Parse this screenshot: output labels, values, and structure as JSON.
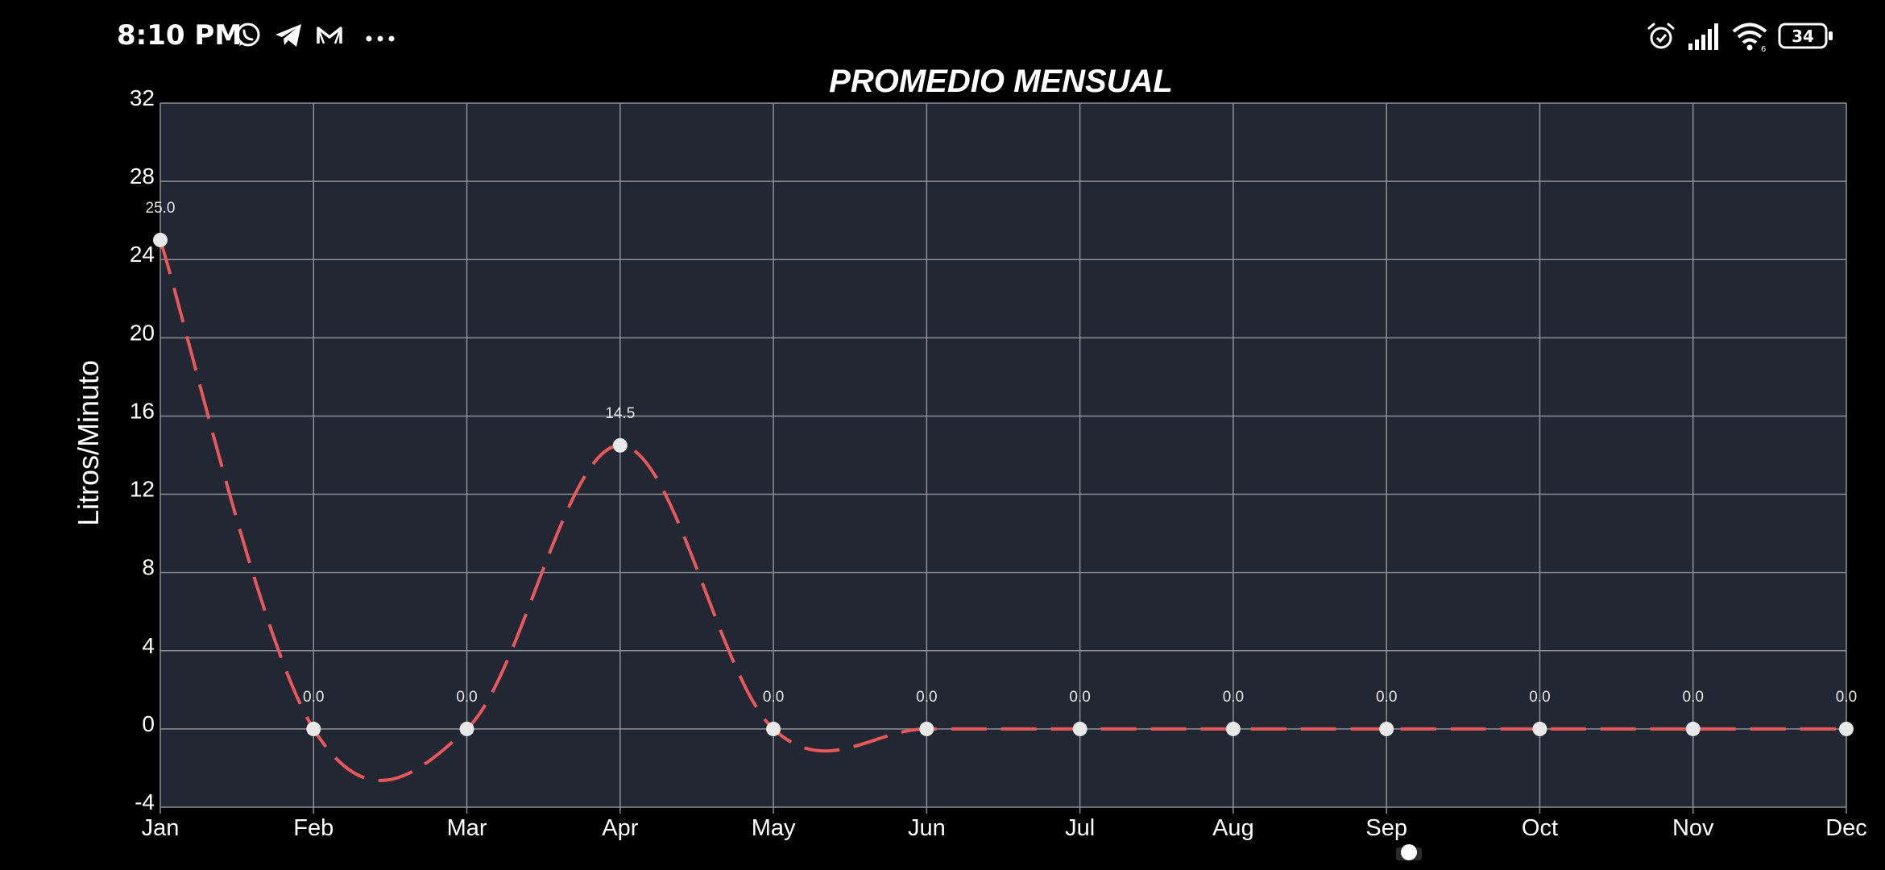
{
  "status_bar": {
    "time": "8:10 PM",
    "left_icons": [
      "whatsapp-icon",
      "telegram-icon",
      "gmail-icon",
      "more-dots-icon"
    ],
    "right_icons": [
      "alarm-icon",
      "signal-icon",
      "wifi-icon",
      "battery-icon"
    ],
    "battery_level": "34"
  },
  "chart_data": {
    "type": "line",
    "title": "PROMEDIO MENSUAL",
    "xlabel": "",
    "ylabel": "Litros/Minuto",
    "categories": [
      "Jan",
      "Feb",
      "Mar",
      "Apr",
      "May",
      "Jun",
      "Jul",
      "Aug",
      "Sep",
      "Oct",
      "Nov",
      "Dec"
    ],
    "series": [
      {
        "values": [
          25.0,
          0.0,
          0.0,
          14.5,
          0.0,
          0.0,
          0.0,
          0.0,
          0.0,
          0.0,
          0.0,
          0.0
        ],
        "labels": [
          "25.0",
          "0.0",
          "0.0",
          "14.5",
          "0.0",
          "0.0",
          "0.0",
          "0.0",
          "0.0",
          "0.0",
          "0.0",
          "0.0"
        ],
        "line_color": "#e8575a",
        "line_style": "dashed",
        "point_color": "#e8e8e8"
      }
    ],
    "ylim": [
      -4,
      32
    ],
    "yticks": [
      "-4",
      "0",
      "4",
      "8",
      "12",
      "16",
      "20",
      "24",
      "28",
      "32"
    ],
    "grid": true,
    "colors": {
      "plot_background": "#222833",
      "grid": "#8c8f96",
      "text": "#ffffff",
      "page_background": "#000000"
    }
  }
}
